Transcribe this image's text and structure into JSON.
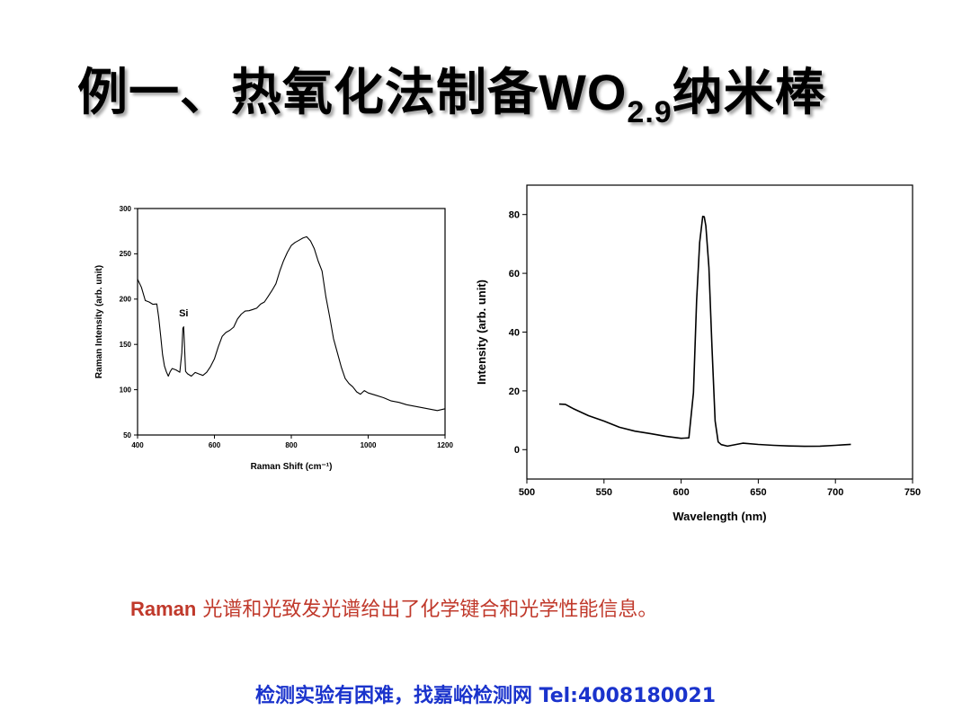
{
  "title": {
    "main": "例一、热氧化法制备",
    "formula": "WO",
    "subscript": "2.9",
    "suffix": "纳米棒"
  },
  "caption": {
    "lead": "Raman",
    "text": " 光谱和光致发光谱给出了化学键合和光学性能信息。"
  },
  "footer": {
    "text": "检测实验有困难，找嘉峪检测网 Tel:4008180021"
  },
  "colors": {
    "caption": "#c0392b",
    "footer": "#1a33cc",
    "line": "#000000"
  },
  "chart_data": [
    {
      "type": "line",
      "xlabel": "Raman Shift (cm⁻¹)",
      "ylabel": "Raman Intensity (arb. unit)",
      "xlim": [
        400,
        1200
      ],
      "ylim": [
        50,
        300
      ],
      "xticks": [
        400,
        600,
        800,
        1000,
        1200
      ],
      "yticks": [
        50,
        100,
        150,
        200,
        250,
        300
      ],
      "annotations": [
        {
          "text": "Si",
          "x": 520,
          "y": 175
        }
      ],
      "series": [
        {
          "x": [
            400,
            410,
            420,
            430,
            440,
            450,
            455,
            460,
            465,
            470,
            475,
            480,
            485,
            490,
            500,
            510,
            515,
            518,
            520,
            522,
            525,
            530,
            540,
            550,
            560,
            570,
            580,
            590,
            600,
            610,
            620,
            630,
            640,
            650,
            660,
            670,
            680,
            690,
            700,
            710,
            720,
            730,
            740,
            750,
            760,
            770,
            780,
            790,
            800,
            810,
            820,
            830,
            840,
            850,
            860,
            870,
            880,
            890,
            900,
            910,
            920,
            930,
            940,
            950,
            960,
            970,
            980,
            990,
            1000,
            1020,
            1040,
            1060,
            1080,
            1100,
            1120,
            1140,
            1160,
            1180,
            1200
          ],
          "y": [
            222,
            210,
            196,
            195,
            193,
            194,
            180,
            160,
            140,
            128,
            122,
            118,
            117,
            121,
            120,
            118,
            140,
            168,
            170,
            150,
            122,
            120,
            118,
            116,
            115,
            114,
            118,
            125,
            134,
            148,
            160,
            165,
            168,
            172,
            175,
            181,
            185,
            186,
            188,
            190,
            195,
            198,
            205,
            212,
            220,
            228,
            240,
            250,
            258,
            262,
            265,
            268,
            270,
            266,
            258,
            245,
            228,
            200,
            178,
            155,
            140,
            125,
            113,
            108,
            105,
            100,
            98,
            96,
            94,
            92,
            90,
            87,
            86,
            84,
            83,
            82,
            81,
            80,
            79
          ]
        }
      ]
    },
    {
      "type": "line",
      "xlabel": "Wavelength (nm)",
      "ylabel": "Intensity (arb. unit)",
      "xlim": [
        500,
        750
      ],
      "ylim": [
        -10,
        90
      ],
      "xticks": [
        500,
        550,
        600,
        650,
        700,
        750
      ],
      "yticks": [
        0,
        20,
        40,
        60,
        80
      ],
      "series": [
        {
          "x": [
            521,
            525,
            530,
            540,
            550,
            560,
            570,
            580,
            590,
            600,
            605,
            608,
            610,
            612,
            614,
            615,
            616,
            618,
            620,
            622,
            624,
            626,
            630,
            640,
            650,
            660,
            670,
            680,
            690,
            700,
            705,
            710
          ],
          "y": [
            15.5,
            14.8,
            13.5,
            11.2,
            9.5,
            7.5,
            6.3,
            5.6,
            4.8,
            4.2,
            4.5,
            20,
            50,
            70,
            79,
            79,
            76,
            62,
            35,
            10,
            3,
            2.2,
            1.8,
            1.6,
            1.3,
            1.1,
            1.0,
            1.0,
            1.2,
            1.6,
            1.9,
            1.8
          ]
        }
      ]
    }
  ]
}
